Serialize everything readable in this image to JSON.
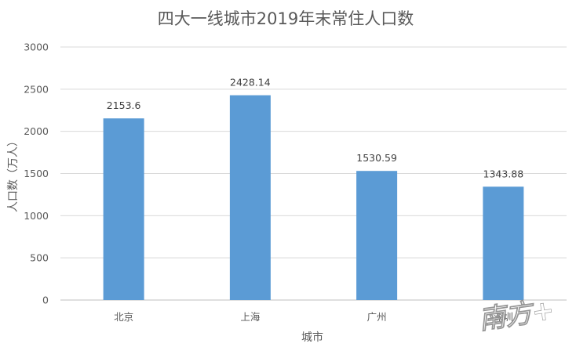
{
  "chart_data": {
    "type": "bar",
    "title": "四大一线城市2019年末常住人口数",
    "xlabel": "城市",
    "ylabel": "人口数（万人）",
    "categories": [
      "北京",
      "上海",
      "广州",
      "深圳"
    ],
    "values": [
      2153.6,
      2428.14,
      1530.59,
      1343.88
    ],
    "data_labels": [
      "2153.6",
      "2428.14",
      "1530.59",
      "1343.88"
    ],
    "ylim": [
      0,
      3000
    ],
    "yticks": [
      0,
      500,
      1000,
      1500,
      2000,
      2500,
      3000
    ],
    "ytick_labels": [
      "0",
      "500",
      "1000",
      "1500",
      "2000",
      "2500",
      "3000"
    ],
    "grid": true,
    "legend": "none",
    "bar_color": "#5b9bd5"
  },
  "watermark": {
    "text": "南方+"
  }
}
